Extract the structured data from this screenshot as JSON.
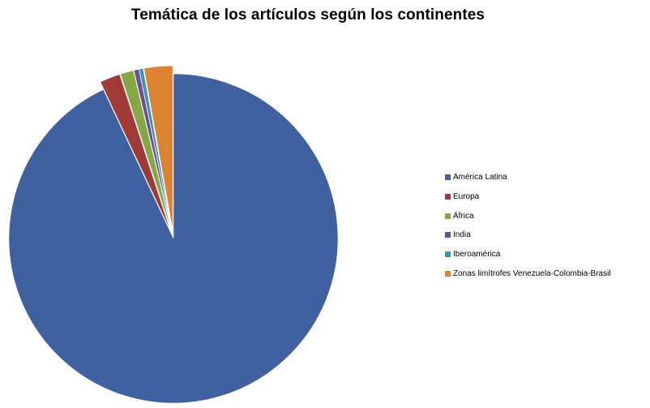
{
  "chart_data": {
    "type": "pie",
    "title": "Temática de los artículos según los continentes",
    "exploded": true,
    "legend_position": "right",
    "slices": [
      {
        "label": "América Latina",
        "value": 93.0,
        "color": "#4061A0"
      },
      {
        "label": "Europa",
        "value": 2.0,
        "color": "#A13A37"
      },
      {
        "label": "África",
        "value": 1.3,
        "color": "#86A844"
      },
      {
        "label": "India",
        "value": 0.5,
        "color": "#6E4E94"
      },
      {
        "label": "Iberoamérica",
        "value": 0.4,
        "color": "#3A95B3"
      },
      {
        "label": "Zonas limítrofes Venezuela-Colombia-Brasil",
        "value": 2.8,
        "color": "#DB8330"
      }
    ]
  }
}
